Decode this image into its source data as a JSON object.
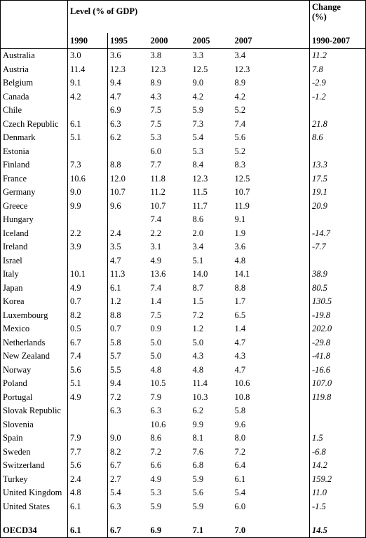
{
  "header": {
    "level_label": "Level (% of GDP)",
    "change_label": "Change",
    "change_unit": "(%)",
    "years": [
      "1990",
      "1995",
      "2000",
      "2005",
      "2007"
    ],
    "change_period": "1990-2007"
  },
  "rows": [
    {
      "country": "Australia",
      "v": [
        "3.0",
        "3.6",
        "3.8",
        "3.3",
        "3.4"
      ],
      "change": "11.2"
    },
    {
      "country": "Austria",
      "v": [
        "11.4",
        "12.3",
        "12.3",
        "12.5",
        "12.3"
      ],
      "change": "7.8"
    },
    {
      "country": "Belgium",
      "v": [
        "9.1",
        "9.4",
        "8.9",
        "9.0",
        "8.9"
      ],
      "change": "-2.9"
    },
    {
      "country": "Canada",
      "v": [
        "4.2",
        "4.7",
        "4.3",
        "4.2",
        "4.2"
      ],
      "change": "-1.2"
    },
    {
      "country": "Chile",
      "v": [
        "",
        "6.9",
        "7.5",
        "5.9",
        "5.2"
      ],
      "change": ""
    },
    {
      "country": "Czech Republic",
      "v": [
        "6.1",
        "6.3",
        "7.5",
        "7.3",
        "7.4"
      ],
      "change": "21.8"
    },
    {
      "country": "Denmark",
      "v": [
        "5.1",
        "6.2",
        "5.3",
        "5.4",
        "5.6"
      ],
      "change": "8.6"
    },
    {
      "country": "Estonia",
      "v": [
        "",
        "",
        "6.0",
        "5.3",
        "5.2"
      ],
      "change": ""
    },
    {
      "country": "Finland",
      "v": [
        "7.3",
        "8.8",
        "7.7",
        "8.4",
        "8.3"
      ],
      "change": "13.3"
    },
    {
      "country": "France",
      "v": [
        "10.6",
        "12.0",
        "11.8",
        "12.3",
        "12.5"
      ],
      "change": "17.5"
    },
    {
      "country": "Germany",
      "v": [
        "9.0",
        "10.7",
        "11.2",
        "11.5",
        "10.7"
      ],
      "change": "19.1"
    },
    {
      "country": "Greece",
      "v": [
        "9.9",
        "9.6",
        "10.7",
        "11.7",
        "11.9"
      ],
      "change": "20.9"
    },
    {
      "country": "Hungary",
      "v": [
        "",
        "",
        "7.4",
        "8.6",
        "9.1"
      ],
      "change": ""
    },
    {
      "country": "Iceland",
      "v": [
        "2.2",
        "2.4",
        "2.2",
        "2.0",
        "1.9"
      ],
      "change": "-14.7"
    },
    {
      "country": "Ireland",
      "v": [
        "3.9",
        "3.5",
        "3.1",
        "3.4",
        "3.6"
      ],
      "change": "-7.7"
    },
    {
      "country": "Israel",
      "v": [
        "",
        "4.7",
        "4.9",
        "5.1",
        "4.8"
      ],
      "change": ""
    },
    {
      "country": "Italy",
      "v": [
        "10.1",
        "11.3",
        "13.6",
        "14.0",
        "14.1"
      ],
      "change": "38.9"
    },
    {
      "country": "Japan",
      "v": [
        "4.9",
        "6.1",
        "7.4",
        "8.7",
        "8.8"
      ],
      "change": "80.5"
    },
    {
      "country": "Korea",
      "v": [
        "0.7",
        "1.2",
        "1.4",
        "1.5",
        "1.7"
      ],
      "change": "130.5"
    },
    {
      "country": "Luxembourg",
      "v": [
        "8.2",
        "8.8",
        "7.5",
        "7.2",
        "6.5"
      ],
      "change": "-19.8"
    },
    {
      "country": "Mexico",
      "v": [
        "0.5",
        "0.7",
        "0.9",
        "1.2",
        "1.4"
      ],
      "change": "202.0"
    },
    {
      "country": "Netherlands",
      "v": [
        "6.7",
        "5.8",
        "5.0",
        "5.0",
        "4.7"
      ],
      "change": "-29.8"
    },
    {
      "country": "New Zealand",
      "v": [
        "7.4",
        "5.7",
        "5.0",
        "4.3",
        "4.3"
      ],
      "change": "-41.8"
    },
    {
      "country": "Norway",
      "v": [
        "5.6",
        "5.5",
        "4.8",
        "4.8",
        "4.7"
      ],
      "change": "-16.6"
    },
    {
      "country": "Poland",
      "v": [
        "5.1",
        "9.4",
        "10.5",
        "11.4",
        "10.6"
      ],
      "change": "107.0"
    },
    {
      "country": "Portugal",
      "v": [
        "4.9",
        "7.2",
        "7.9",
        "10.3",
        "10.8"
      ],
      "change": "119.8"
    },
    {
      "country": "Slovak Republic",
      "v": [
        "",
        "6.3",
        "6.3",
        "6.2",
        "5.8"
      ],
      "change": ""
    },
    {
      "country": "Slovenia",
      "v": [
        "",
        "",
        "10.6",
        "9.9",
        "9.6"
      ],
      "change": ""
    },
    {
      "country": "Spain",
      "v": [
        "7.9",
        "9.0",
        "8.6",
        "8.1",
        "8.0"
      ],
      "change": "1.5"
    },
    {
      "country": "Sweden",
      "v": [
        "7.7",
        "8.2",
        "7.2",
        "7.6",
        "7.2"
      ],
      "change": "-6.8"
    },
    {
      "country": "Switzerland",
      "v": [
        "5.6",
        "6.7",
        "6.6",
        "6.8",
        "6.4"
      ],
      "change": "14.2"
    },
    {
      "country": "Turkey",
      "v": [
        "2.4",
        "2.7",
        "4.9",
        "5.9",
        "6.1"
      ],
      "change": "159.2"
    },
    {
      "country": "United Kingdom",
      "v": [
        "4.8",
        "5.4",
        "5.3",
        "5.6",
        "5.4"
      ],
      "change": "11.0"
    },
    {
      "country": "United States",
      "v": [
        "6.1",
        "6.3",
        "5.9",
        "5.9",
        "6.0"
      ],
      "change": "-1.5"
    }
  ],
  "total": {
    "country": "OECD34",
    "v": [
      "6.1",
      "6.7",
      "6.9",
      "7.1",
      "7.0"
    ],
    "change": "14.5"
  }
}
